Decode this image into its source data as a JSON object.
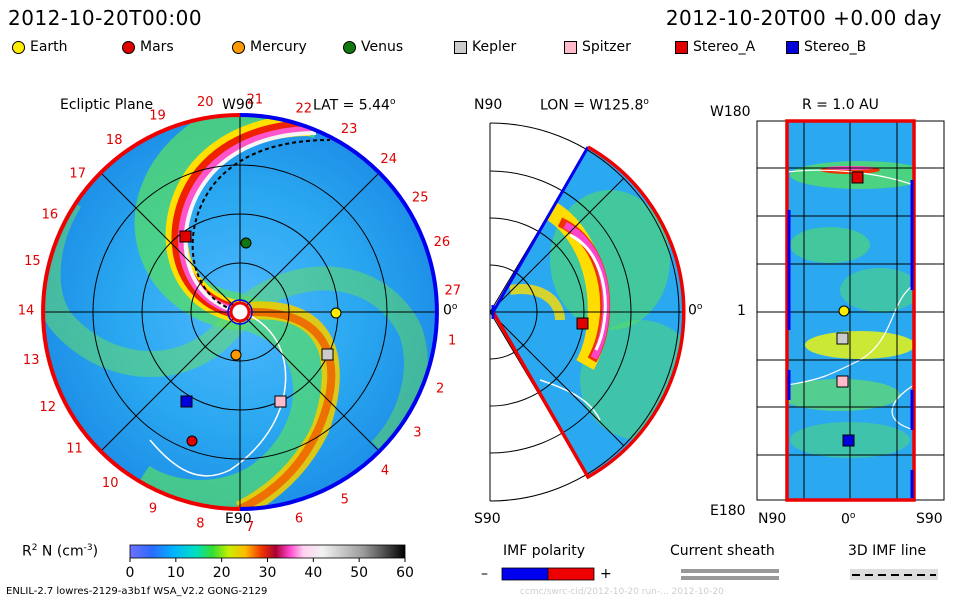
{
  "header": {
    "left_timestamp": "2012-10-20T00:00",
    "right_timestamp": "2012-10-20T00 +0.00 day"
  },
  "legend": [
    {
      "name": "Earth",
      "shape": "circle",
      "color": "#ffee00"
    },
    {
      "name": "Mars",
      "shape": "circle",
      "color": "#e00000"
    },
    {
      "name": "Mercury",
      "shape": "circle",
      "color": "#ff9900"
    },
    {
      "name": "Venus",
      "shape": "circle",
      "color": "#117711"
    },
    {
      "name": "Kepler",
      "shape": "square",
      "color": "#cccccc"
    },
    {
      "name": "Spitzer",
      "shape": "square",
      "color": "#ffbbcc"
    },
    {
      "name": "Stereo_A",
      "shape": "square",
      "color": "#e00000"
    },
    {
      "name": "Stereo_B",
      "shape": "square",
      "color": "#0000dd"
    }
  ],
  "panels": {
    "ecliptic": {
      "title": "Ecliptic Plane",
      "top_label": "W90",
      "bottom_label": "E90",
      "right_label": "0",
      "lat_label": "LAT = 5.44",
      "deg": "o",
      "carrington_ticks": [
        "1",
        "2",
        "3",
        "4",
        "5",
        "6",
        "7",
        "8",
        "9",
        "10",
        "11",
        "12",
        "13",
        "14",
        "15",
        "16",
        "17",
        "18",
        "19",
        "20",
        "21",
        "22",
        "23",
        "24",
        "25",
        "26",
        "27"
      ]
    },
    "meridional": {
      "top_label": "N90",
      "bottom_label": "S90",
      "lon_label": "LON = W125.8",
      "right_label": "0",
      "deg": "o"
    },
    "radial": {
      "r_label": "R = 1.0 AU",
      "top_left": "W180",
      "bottom_left": "E180",
      "mid_left": "1",
      "bottom_n": "N90",
      "bottom_0": "0",
      "bottom_s": "S90",
      "deg": "o"
    }
  },
  "colorbar": {
    "label": "R",
    "label_sup": "2",
    "label_rest": " N (cm",
    "label_exp": "-3",
    "label_close": ")",
    "ticks": [
      "0",
      "10",
      "20",
      "30",
      "40",
      "50",
      "60"
    ],
    "min": 0,
    "max": 60
  },
  "imf": {
    "polarity_label": "IMF polarity",
    "minus": "–",
    "plus": "+",
    "current_sheath_label": "Current sheath",
    "imf_line_label": "3D IMF line"
  },
  "footer": {
    "model": "ENLIL-2.7 lowres-2129-a3b1f WSA_V2.2 GONG-2129",
    "run_id": "ccmc/swrc-cid/2012-10-20 run-... 2012-10-20"
  },
  "chart_data": [
    {
      "type": "heatmap",
      "title": "Ecliptic Plane",
      "variable": "R2 N (cm-3)",
      "color_range": [
        0,
        60
      ],
      "annotations": [
        "W90",
        "E90",
        "LAT = 5.44",
        "0"
      ],
      "bodies": [
        "Earth",
        "Mars",
        "Mercury",
        "Venus",
        "Kepler",
        "Spitzer",
        "Stereo_A",
        "Stereo_B"
      ]
    },
    {
      "type": "heatmap",
      "title": "LON = W125.8",
      "variable": "R2 N (cm-3)",
      "annotations": [
        "N90",
        "S90",
        "0"
      ],
      "bodies": [
        "Stereo_A"
      ]
    },
    {
      "type": "heatmap",
      "title": "R = 1.0 AU",
      "variable": "R2 N (cm-3)",
      "xlabels": [
        "N90",
        "0",
        "S90"
      ],
      "ylabels": [
        "W180",
        "1",
        "E180"
      ],
      "bodies": [
        "Stereo_A",
        "Earth",
        "Kepler",
        "Spitzer",
        "Stereo_B"
      ]
    }
  ]
}
